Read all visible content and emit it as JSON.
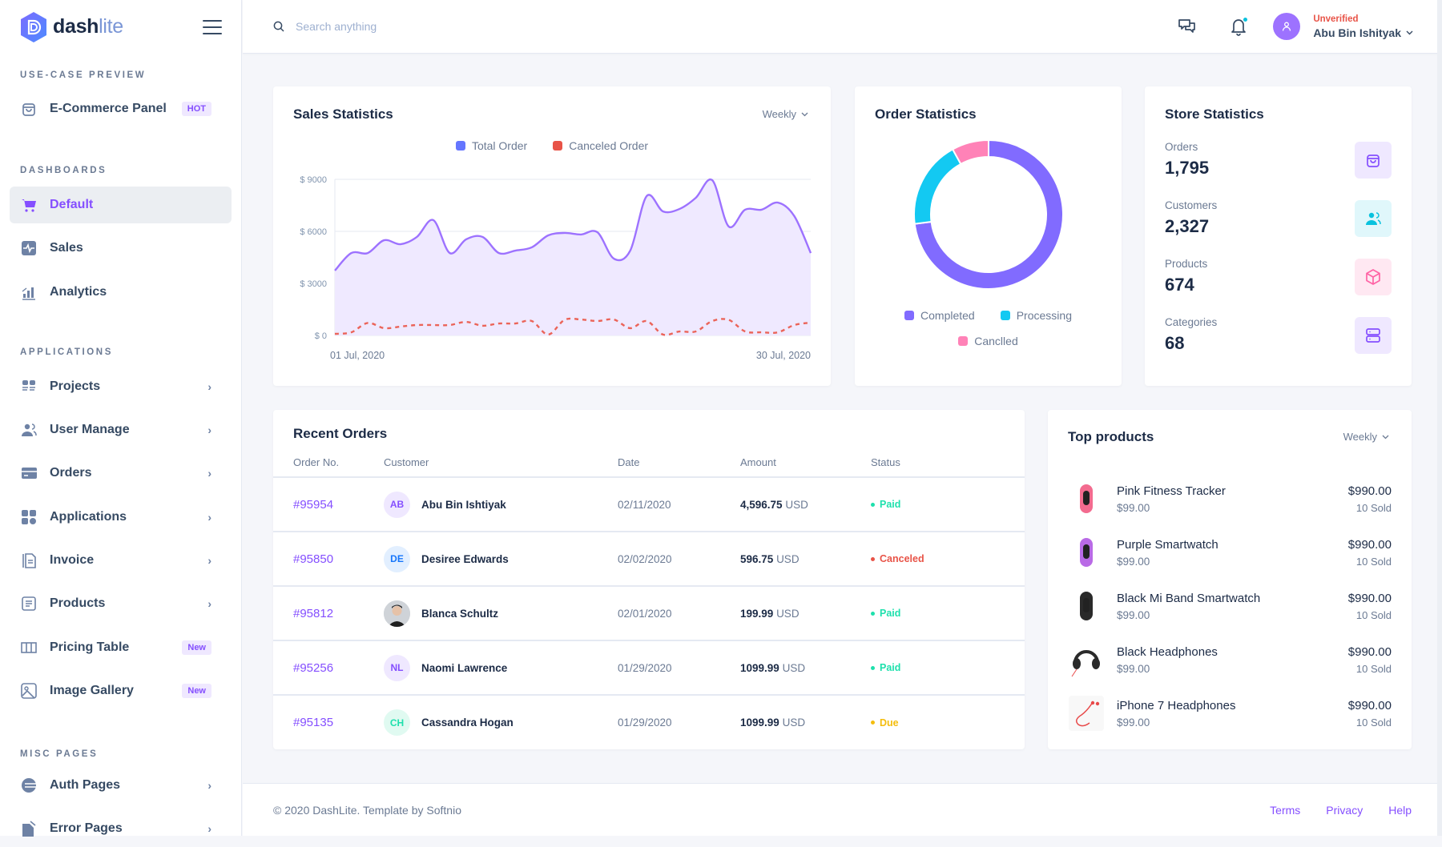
{
  "brand": {
    "name_bold": "dash",
    "name_light": "lite"
  },
  "header": {
    "search_placeholder": "Search anything",
    "user": {
      "status": "Unverified",
      "name": "Abu Bin Ishityak"
    },
    "icons": [
      "chat-icon",
      "bell-icon",
      "user-icon"
    ]
  },
  "sidebar": {
    "sections": [
      {
        "title": "Use-Case Preview",
        "items": [
          {
            "label": "E-Commerce Panel",
            "icon": "bag-icon",
            "badge": "HOT"
          }
        ]
      },
      {
        "title": "Dashboards",
        "items": [
          {
            "label": "Default",
            "icon": "cart-icon",
            "active": true
          },
          {
            "label": "Sales",
            "icon": "activity-icon"
          },
          {
            "label": "Analytics",
            "icon": "bar-chart-icon"
          }
        ]
      },
      {
        "title": "Applications",
        "items": [
          {
            "label": "Projects",
            "icon": "projects-icon",
            "chevron": true
          },
          {
            "label": "User Manage",
            "icon": "users-icon",
            "chevron": true
          },
          {
            "label": "Orders",
            "icon": "card-icon",
            "chevron": true
          },
          {
            "label": "Applications",
            "icon": "grid-icon",
            "chevron": true
          },
          {
            "label": "Invoice",
            "icon": "invoice-icon",
            "chevron": true
          },
          {
            "label": "Products",
            "icon": "list-icon",
            "chevron": true
          },
          {
            "label": "Pricing Table",
            "icon": "table-icon",
            "badge": "New"
          },
          {
            "label": "Image Gallery",
            "icon": "image-icon",
            "badge": "New"
          }
        ]
      },
      {
        "title": "Misc Pages",
        "items": [
          {
            "label": "Auth Pages",
            "icon": "auth-icon",
            "chevron": true
          },
          {
            "label": "Error Pages",
            "icon": "error-icon",
            "chevron": true
          }
        ]
      }
    ]
  },
  "sales_statistics": {
    "title": "Sales Statistics",
    "period": "Weekly"
  },
  "order_statistics": {
    "title": "Order Statistics"
  },
  "store_statistics": {
    "title": "Store Statistics",
    "items": [
      {
        "label": "Orders",
        "value": "1,795",
        "icon": "bag-icon",
        "color": "#854fff",
        "bg": "#efe8ff"
      },
      {
        "label": "Customers",
        "value": "2,327",
        "icon": "users-icon",
        "color": "#09c2de",
        "bg": "#e0f7fb"
      },
      {
        "label": "Products",
        "value": "674",
        "icon": "box-icon",
        "color": "#ff63a5",
        "bg": "#ffe8f2"
      },
      {
        "label": "Categories",
        "value": "68",
        "icon": "server-icon",
        "color": "#854fff",
        "bg": "#efe8ff"
      }
    ]
  },
  "recent_orders": {
    "title": "Recent Orders",
    "columns": [
      "Order No.",
      "Customer",
      "Date",
      "Amount",
      "Status"
    ],
    "rows": [
      {
        "order": "#95954",
        "initials": "AB",
        "avatar_bg": "#efe8ff",
        "avatar_fg": "#854fff",
        "customer": "Abu Bin Ishtiyak",
        "date": "02/11/2020",
        "amount": "4,596.75",
        "currency": "USD",
        "status": "Paid",
        "status_color": "#1ee0ac"
      },
      {
        "order": "#95850",
        "initials": "DE",
        "avatar_bg": "#e2efff",
        "avatar_fg": "#1676fb",
        "customer": "Desiree Edwards",
        "date": "02/02/2020",
        "amount": "596.75",
        "currency": "USD",
        "status": "Canceled",
        "status_color": "#e85347"
      },
      {
        "order": "#95812",
        "initials": "",
        "photo": true,
        "avatar_bg": "#d5d8de",
        "avatar_fg": "#364a63",
        "customer": "Blanca Schultz",
        "date": "02/01/2020",
        "amount": "199.99",
        "currency": "USD",
        "status": "Paid",
        "status_color": "#1ee0ac"
      },
      {
        "order": "#95256",
        "initials": "NL",
        "avatar_bg": "#efe8ff",
        "avatar_fg": "#854fff",
        "customer": "Naomi Lawrence",
        "date": "01/29/2020",
        "amount": "1099.99",
        "currency": "USD",
        "status": "Paid",
        "status_color": "#1ee0ac"
      },
      {
        "order": "#95135",
        "initials": "CH",
        "avatar_bg": "#e0faf1",
        "avatar_fg": "#1ee0ac",
        "customer": "Cassandra Hogan",
        "date": "01/29/2020",
        "amount": "1099.99",
        "currency": "USD",
        "status": "Due",
        "status_color": "#f4bd0e"
      }
    ]
  },
  "top_products": {
    "title": "Top products",
    "period": "Weekly",
    "items": [
      {
        "name": "Pink Fitness Tracker",
        "price": "$99.00",
        "total": "$990.00",
        "sold": "10 Sold",
        "image": "pink-band",
        "color": "#f36b8f"
      },
      {
        "name": "Purple Smartwatch",
        "price": "$99.00",
        "total": "$990.00",
        "sold": "10 Sold",
        "image": "purple-band",
        "color": "#b96ae6"
      },
      {
        "name": "Black Mi Band Smartwatch",
        "price": "$99.00",
        "total": "$990.00",
        "sold": "10 Sold",
        "image": "black-band",
        "color": "#2a2a2a"
      },
      {
        "name": "Black Headphones",
        "price": "$99.00",
        "total": "$990.00",
        "sold": "10 Sold",
        "image": "headphones",
        "color": "#2a2a2a"
      },
      {
        "name": "iPhone 7 Headphones",
        "price": "$99.00",
        "total": "$990.00",
        "sold": "10 Sold",
        "image": "earphones",
        "color": "#e84a4a"
      }
    ]
  },
  "footer": {
    "copyright": "© 2020 DashLite. Template by Softnio",
    "links": [
      "Terms",
      "Privacy",
      "Help"
    ]
  },
  "chart_data": [
    {
      "type": "area",
      "title": "Sales Statistics",
      "legend": [
        "Total Order",
        "Canceled Order"
      ],
      "legend_position": "top-center",
      "x_start_label": "01 Jul, 2020",
      "x_end_label": "30 Jul, 2020",
      "y_ticks": [
        "$ 0",
        "$ 3000",
        "$ 6000",
        "$ 9000"
      ],
      "ylim": [
        0,
        9000
      ],
      "grid": true,
      "x": [
        1,
        2,
        3,
        4,
        5,
        6,
        7,
        8,
        9,
        10,
        11,
        12,
        13,
        14,
        15,
        16,
        17,
        18,
        19,
        20,
        21,
        22,
        23,
        24,
        25,
        26,
        27,
        28,
        29,
        30
      ],
      "series": [
        {
          "name": "Total Order",
          "color": "#9d72ff",
          "fill": "#efe9ff",
          "values": [
            3740,
            4750,
            4750,
            5490,
            5260,
            5680,
            6650,
            4750,
            5540,
            5680,
            4750,
            4890,
            5080,
            5770,
            5910,
            5820,
            5950,
            4430,
            4890,
            8030,
            7150,
            7290,
            7940,
            8950,
            6280,
            7250,
            7250,
            7660,
            6880,
            4750
          ]
        },
        {
          "name": "Canceled Order",
          "color": "#eb6459",
          "dashed": true,
          "values": [
            92,
            180,
            720,
            420,
            510,
            600,
            600,
            600,
            780,
            560,
            690,
            690,
            830,
            50,
            900,
            920,
            830,
            920,
            420,
            830,
            50,
            230,
            230,
            830,
            900,
            230,
            180,
            180,
            600,
            740
          ]
        }
      ]
    },
    {
      "type": "pie",
      "title": "Order Statistics",
      "donut": true,
      "legend_position": "bottom",
      "labels": [
        "Completed",
        "Processing",
        "Canclled"
      ],
      "values": [
        73,
        19,
        8
      ],
      "colors": [
        "#816bff",
        "#13c9f2",
        "#ff82b7"
      ]
    }
  ]
}
